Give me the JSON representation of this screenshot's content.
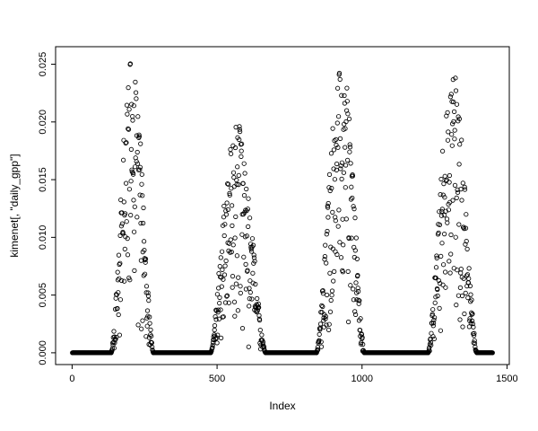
{
  "figure": {
    "background": "#ffffff",
    "foreground": "#000000"
  },
  "chart_data": {
    "type": "scatter",
    "title": "",
    "xlabel": "Index",
    "ylabel": "kimenet[, \"daily_gpp\"]",
    "marker": "open-circle",
    "grid": false,
    "xlim": [
      1,
      1450
    ],
    "ylim": [
      0,
      0.0255
    ],
    "x_ticks": [
      0,
      500,
      1000,
      1500
    ],
    "x_tick_labels": [
      "0",
      "500",
      "1000",
      "1500"
    ],
    "y_ticks": [
      0,
      0.005,
      0.01,
      0.015,
      0.02,
      0.025
    ],
    "y_tick_labels": [
      "0.000",
      "0.005",
      "0.010",
      "0.015",
      "0.020",
      "0.025"
    ],
    "n_points": 1450,
    "baseline_value": 0,
    "seasons": [
      {
        "start": 135,
        "peak": 207,
        "end": 280,
        "max": 0.0255
      },
      {
        "start": 478,
        "peak": 562,
        "end": 668,
        "max": 0.0205
      },
      {
        "start": 843,
        "peak": 930,
        "end": 1008,
        "max": 0.0255
      },
      {
        "start": 1228,
        "peak": 1312,
        "end": 1396,
        "max": 0.0245
      }
    ]
  }
}
